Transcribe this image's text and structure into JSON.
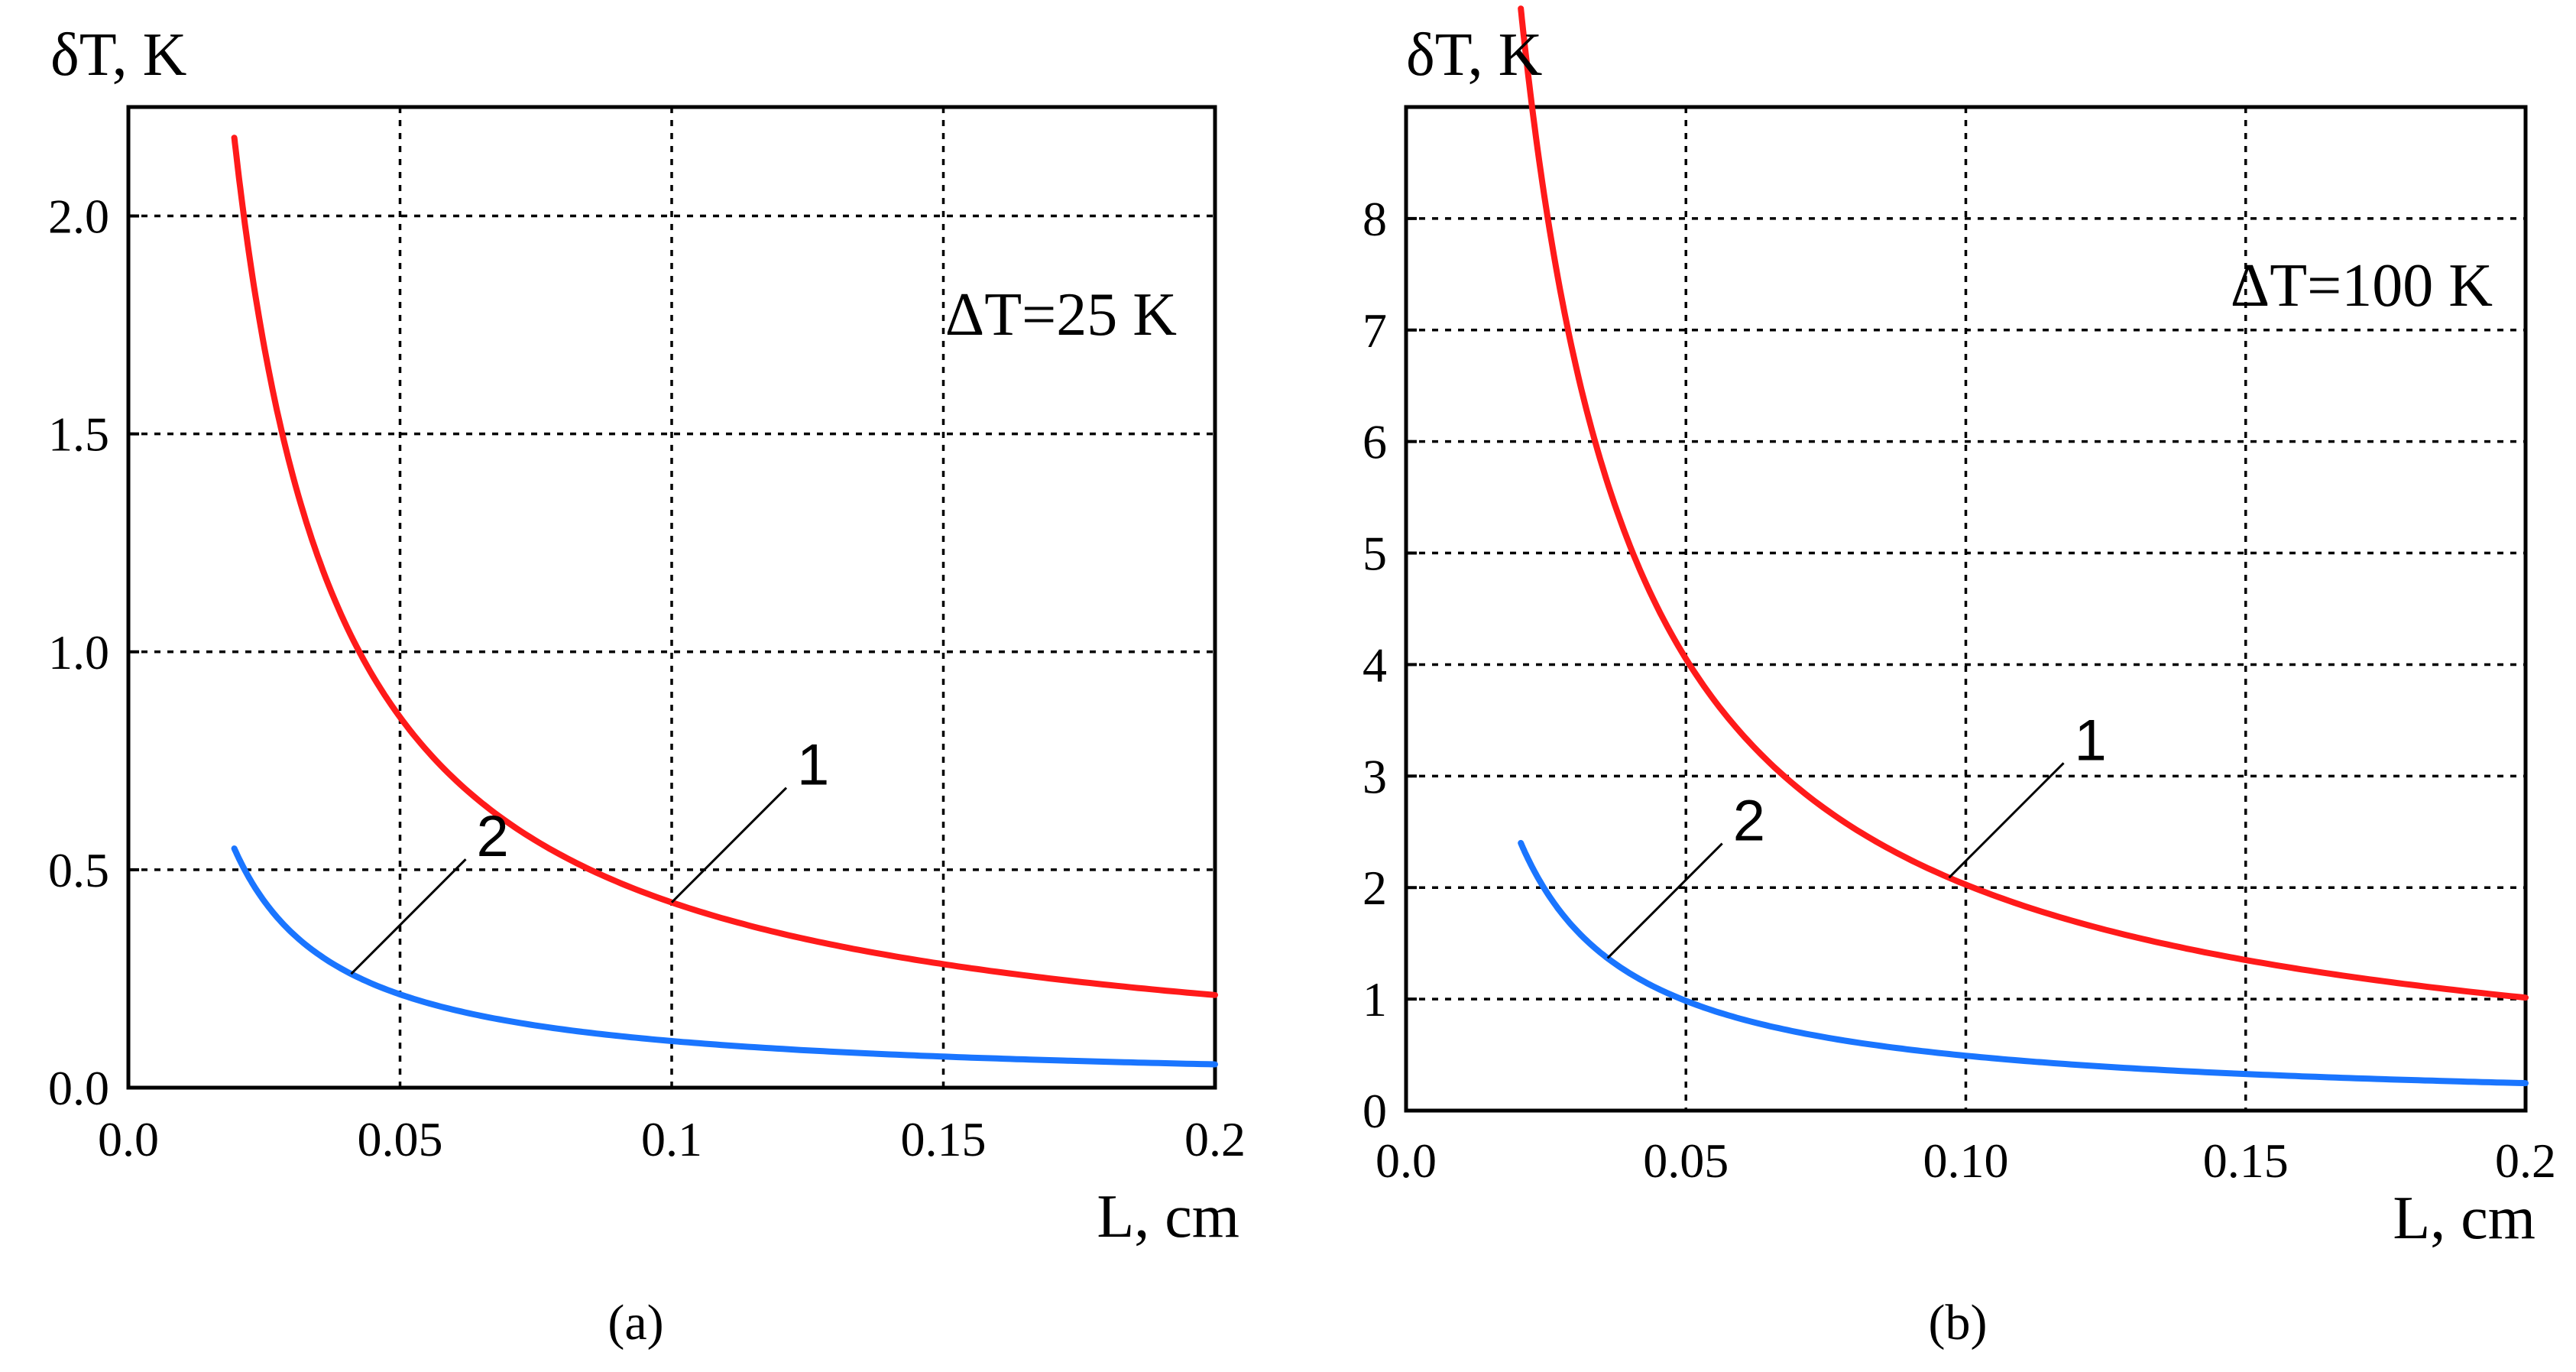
{
  "chart_data": [
    {
      "id": "a",
      "type": "line",
      "subcaption": "(a)",
      "ylabel": "δT, K",
      "xlabel": "L, cm",
      "xlim": [
        0,
        0.2
      ],
      "ylim": [
        0,
        2.25
      ],
      "xticks": [
        0,
        0.05,
        0.1,
        0.15,
        0.2
      ],
      "xtick_labels": [
        "0.0",
        "0.05",
        "0.1",
        "0.15",
        "0.2"
      ],
      "yticks": [
        0,
        0.5,
        1.0,
        1.5,
        2.0
      ],
      "ytick_labels": [
        "0.0",
        "0.5",
        "1.0",
        "1.5",
        "2.0"
      ],
      "grid": true,
      "annotation": "ΔT=25 K",
      "series": [
        {
          "name": "1",
          "color": "#ff1a1a",
          "k": 0.0425,
          "x_start": 0.0195,
          "x_end": 0.2,
          "label_at": 0.1
        },
        {
          "name": "2",
          "color": "#1a75ff",
          "k": 0.0107,
          "x_start": 0.0195,
          "x_end": 0.2,
          "label_at": 0.041
        }
      ]
    },
    {
      "id": "b",
      "type": "line",
      "subcaption": "(b)",
      "ylabel": "δT, K",
      "xlabel": "L, cm",
      "xlim": [
        0,
        0.2
      ],
      "ylim": [
        0,
        9
      ],
      "xticks": [
        0,
        0.05,
        0.1,
        0.15,
        0.2
      ],
      "xtick_labels": [
        "0.0",
        "0.05",
        "0.10",
        "0.15",
        "0.2"
      ],
      "yticks": [
        0,
        1,
        2,
        3,
        4,
        5,
        6,
        7,
        8
      ],
      "ytick_labels": [
        "0",
        "1",
        "2",
        "3",
        "4",
        "5",
        "6",
        "7",
        "8"
      ],
      "grid": true,
      "annotation": "ΔT=100 K",
      "series": [
        {
          "name": "1",
          "color": "#ff1a1a",
          "k": 0.2026,
          "x_start": 0.0205,
          "x_end": 0.2,
          "label_at": 0.097
        },
        {
          "name": "2",
          "color": "#1a75ff",
          "k": 0.0492,
          "x_start": 0.0205,
          "x_end": 0.2,
          "label_at": 0.036
        }
      ]
    }
  ]
}
